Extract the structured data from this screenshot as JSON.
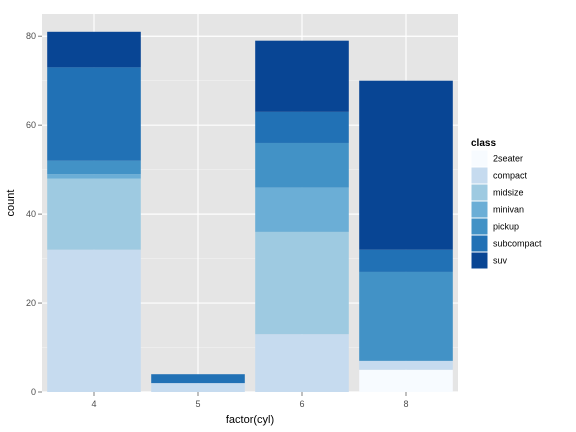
{
  "chart_data": {
    "type": "bar",
    "stacked": true,
    "xlabel": "factor(cyl)",
    "ylabel": "count",
    "categories": [
      "4",
      "5",
      "6",
      "8"
    ],
    "ylim": [
      0,
      85
    ],
    "yticks": [
      0,
      20,
      40,
      60,
      80
    ],
    "grid": true,
    "legend": {
      "title": "class",
      "position": "right"
    },
    "series": [
      {
        "name": "2seater",
        "color": "#F7FBFF",
        "values": [
          0,
          0,
          0,
          5
        ]
      },
      {
        "name": "compact",
        "color": "#C6DBEF",
        "values": [
          32,
          2,
          13,
          2
        ]
      },
      {
        "name": "midsize",
        "color": "#9ECAE1",
        "values": [
          16,
          0,
          23,
          0
        ]
      },
      {
        "name": "minivan",
        "color": "#6BAED6",
        "values": [
          1,
          0,
          10,
          0
        ]
      },
      {
        "name": "pickup",
        "color": "#4292C6",
        "values": [
          3,
          0,
          10,
          20
        ]
      },
      {
        "name": "subcompact",
        "color": "#2171B5",
        "values": [
          21,
          2,
          7,
          5
        ]
      },
      {
        "name": "suv",
        "color": "#084594",
        "values": [
          8,
          0,
          16,
          38
        ]
      }
    ]
  }
}
